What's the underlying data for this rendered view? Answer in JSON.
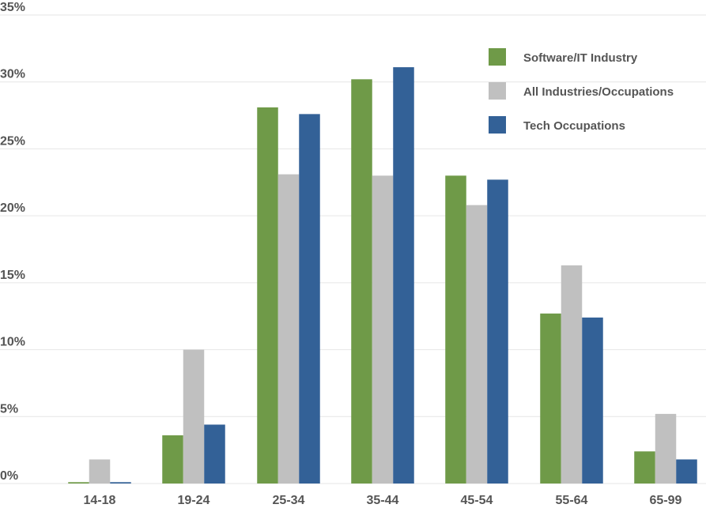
{
  "chart_data": {
    "type": "bar",
    "categories": [
      "14-18",
      "19-24",
      "25-34",
      "35-44",
      "45-54",
      "55-64",
      "65-99"
    ],
    "series": [
      {
        "name": "Software/IT Industry",
        "color": "#6f9a48",
        "values": [
          0.1,
          3.6,
          28.1,
          30.2,
          23.0,
          12.7,
          2.4
        ]
      },
      {
        "name": "All Industries/Occupations",
        "color": "#c0c0c0",
        "values": [
          1.8,
          10.0,
          23.1,
          23.0,
          20.8,
          16.3,
          5.2
        ]
      },
      {
        "name": "Tech Occupations",
        "color": "#336197",
        "values": [
          0.1,
          4.4,
          27.6,
          31.1,
          22.7,
          12.4,
          1.8
        ]
      }
    ],
    "ylim": [
      0,
      35
    ],
    "yticks": [
      "0%",
      "5%",
      "10%",
      "15%",
      "20%",
      "25%",
      "30%",
      "35%"
    ],
    "grid": true,
    "legend_position": "top-right"
  }
}
